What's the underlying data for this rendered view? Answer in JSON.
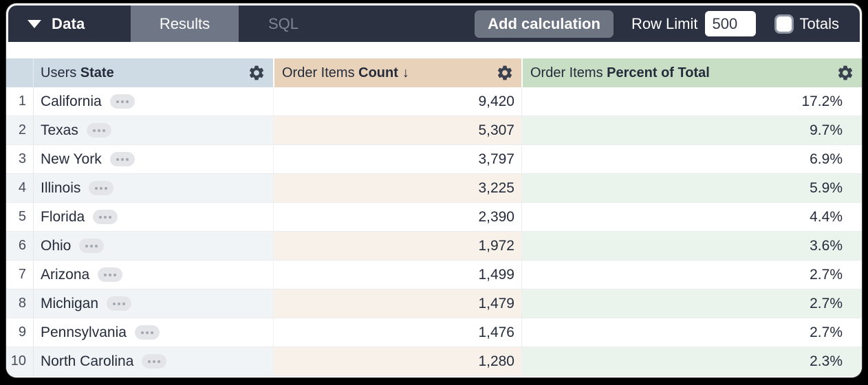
{
  "toolbar": {
    "data_label": "Data",
    "tabs": [
      {
        "label": "Results",
        "active": true
      },
      {
        "label": "SQL",
        "active": false
      }
    ],
    "add_calculation_label": "Add calculation",
    "row_limit_label": "Row Limit",
    "row_limit_value": "500",
    "totals_label": "Totals",
    "totals_checked": false,
    "colors": {
      "toolbar_bg": "#2b3140",
      "active_tab_bg": "#6f7686",
      "inactive_tab_fg": "#7e8595",
      "button_bg": "#6d7482"
    }
  },
  "table": {
    "columns": [
      {
        "view": "Users ",
        "field": "State",
        "sort_glyph": "",
        "header_bg": "#cedae4",
        "stripe_bg": "#f1f4f6"
      },
      {
        "view": "Order Items ",
        "field": "Count",
        "sort_glyph": "↓",
        "header_bg": "#e9d2ba",
        "stripe_bg": "#f8f1ea"
      },
      {
        "view": "Order Items ",
        "field": "Percent of Total",
        "sort_glyph": "",
        "header_bg": "#c9dfc5",
        "stripe_bg": "#ebf4ec"
      }
    ],
    "rows": [
      {
        "num": "1",
        "state": "California",
        "count": "9,420",
        "percent": "17.2%"
      },
      {
        "num": "2",
        "state": "Texas",
        "count": "5,307",
        "percent": "9.7%"
      },
      {
        "num": "3",
        "state": "New York",
        "count": "3,797",
        "percent": "6.9%"
      },
      {
        "num": "4",
        "state": "Illinois",
        "count": "3,225",
        "percent": "5.9%"
      },
      {
        "num": "5",
        "state": "Florida",
        "count": "2,390",
        "percent": "4.4%"
      },
      {
        "num": "6",
        "state": "Ohio",
        "count": "1,972",
        "percent": "3.6%"
      },
      {
        "num": "7",
        "state": "Arizona",
        "count": "1,499",
        "percent": "2.7%"
      },
      {
        "num": "8",
        "state": "Michigan",
        "count": "1,479",
        "percent": "2.7%"
      },
      {
        "num": "9",
        "state": "Pennsylvania",
        "count": "1,476",
        "percent": "2.7%"
      },
      {
        "num": "10",
        "state": "North Carolina",
        "count": "1,280",
        "percent": "2.3%"
      }
    ]
  }
}
